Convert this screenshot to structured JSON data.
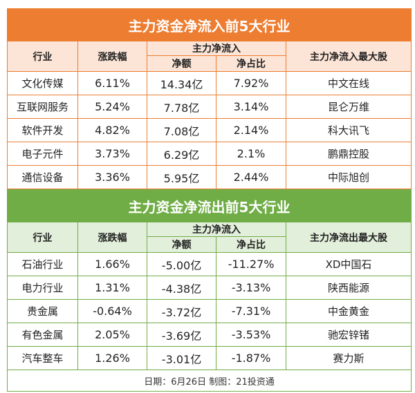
{
  "inflow": {
    "title": "主力资金净流入前5大行业",
    "headers": {
      "industry": "行业",
      "change": "涨跌幅",
      "netflow": "主力净流入",
      "amount": "净额",
      "ratio": "净占比",
      "top_stock": "主力净流入最大股"
    },
    "rows": [
      {
        "industry": "文化传媒",
        "change": "6.11%",
        "amount": "14.34亿",
        "ratio": "7.92%",
        "stock": "中文在线"
      },
      {
        "industry": "互联网服务",
        "change": "5.24%",
        "amount": "7.78亿",
        "ratio": "3.14%",
        "stock": "昆仑万维"
      },
      {
        "industry": "软件开发",
        "change": "4.82%",
        "amount": "7.08亿",
        "ratio": "2.14%",
        "stock": "科大讯飞"
      },
      {
        "industry": "电子元件",
        "change": "3.73%",
        "amount": "6.29亿",
        "ratio": "2.1%",
        "stock": "鹏鼎控股"
      },
      {
        "industry": "通信设备",
        "change": "3.36%",
        "amount": "5.95亿",
        "ratio": "2.44%",
        "stock": "中际旭创"
      }
    ]
  },
  "outflow": {
    "title": "主力资金净流出前5大行业",
    "headers": {
      "industry": "行业",
      "change": "涨跌幅",
      "netflow": "主力净流入",
      "amount": "净额",
      "ratio": "净占比",
      "top_stock": "主力净流出最大股"
    },
    "rows": [
      {
        "industry": "石油行业",
        "change": "1.66%",
        "amount": "-5.00亿",
        "ratio": "-11.27%",
        "stock": "XD中国石"
      },
      {
        "industry": "电力行业",
        "change": "1.31%",
        "amount": "-4.38亿",
        "ratio": "-3.13%",
        "stock": "陕西能源"
      },
      {
        "industry": "贵金属",
        "change": "-0.64%",
        "amount": "-3.72亿",
        "ratio": "-7.31%",
        "stock": "中金黄金"
      },
      {
        "industry": "有色金属",
        "change": "2.05%",
        "amount": "-3.69亿",
        "ratio": "-3.53%",
        "stock": "驰宏锌锗"
      },
      {
        "industry": "汽车整车",
        "change": "1.26%",
        "amount": "-3.01亿",
        "ratio": "-1.87%",
        "stock": "赛力斯"
      }
    ]
  },
  "footer": "日期：6月26日 制图：21投资通"
}
